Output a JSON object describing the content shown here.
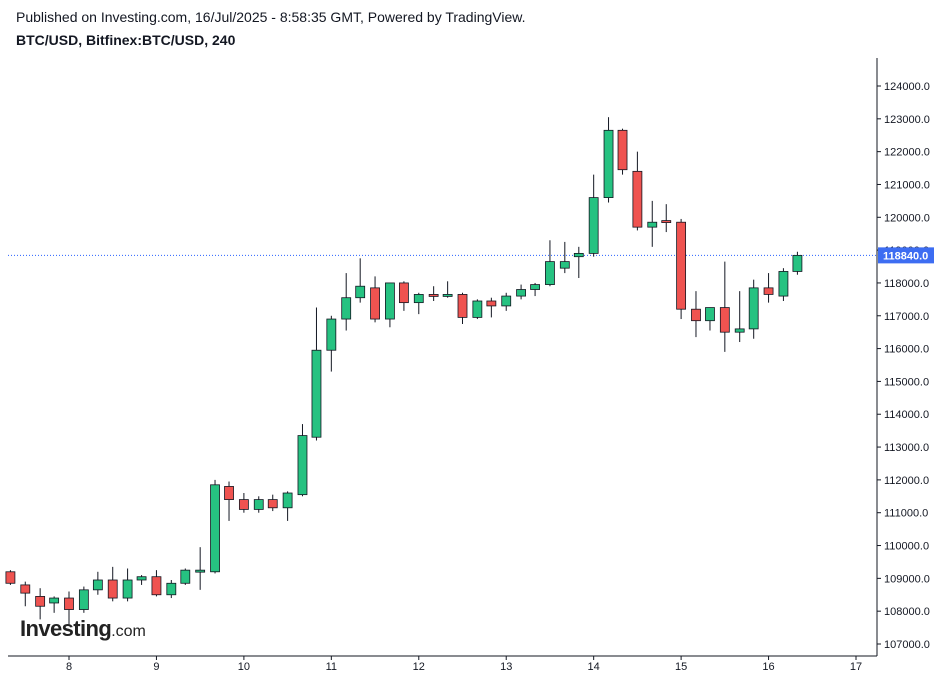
{
  "header": {
    "published_line": "Published on Investing.com, 16/Jul/2025 - 8:58:35 GMT, Powered by TradingView.",
    "symbol_line": "BTC/USD, Bitfinex:BTC/USD, 240"
  },
  "logo": {
    "brand": "Investing",
    "tld": ".com"
  },
  "colors": {
    "up": "#26c281",
    "down": "#ef5350",
    "wick": "#131722",
    "axis": "#131722",
    "price_line": "#2962ff",
    "price_label_bg": "#3d6df2"
  },
  "chart_data": {
    "type": "candlestick",
    "interval": "240",
    "x_ticks": [
      "8",
      "9",
      "10",
      "11",
      "12",
      "13",
      "14",
      "15",
      "16",
      "17"
    ],
    "y_ticks": [
      "107000.0",
      "108000.0",
      "109000.0",
      "110000.0",
      "111000.0",
      "112000.0",
      "113000.0",
      "114000.0",
      "115000.0",
      "116000.0",
      "117000.0",
      "118000.0",
      "119000.0",
      "120000.0",
      "121000.0",
      "122000.0",
      "123000.0",
      "124000.0"
    ],
    "ylim": [
      106600,
      125000
    ],
    "xlim": [
      7.3,
      17.2
    ],
    "current_price": 118840.0,
    "current_price_label": "118840.0",
    "candles": [
      {
        "t": 7.33,
        "o": 109200,
        "h": 109250,
        "l": 108800,
        "c": 108850
      },
      {
        "t": 7.5,
        "o": 108800,
        "h": 108900,
        "l": 108150,
        "c": 108550
      },
      {
        "t": 7.67,
        "o": 108450,
        "h": 108700,
        "l": 107750,
        "c": 108150
      },
      {
        "t": 7.83,
        "o": 108250,
        "h": 108450,
        "l": 107950,
        "c": 108400
      },
      {
        "t": 8.0,
        "o": 108400,
        "h": 108600,
        "l": 107600,
        "c": 108050
      },
      {
        "t": 8.17,
        "o": 108050,
        "h": 108750,
        "l": 107950,
        "c": 108650
      },
      {
        "t": 8.33,
        "o": 108650,
        "h": 109200,
        "l": 108500,
        "c": 108950
      },
      {
        "t": 8.5,
        "o": 108950,
        "h": 109350,
        "l": 108300,
        "c": 108400
      },
      {
        "t": 8.67,
        "o": 108400,
        "h": 109300,
        "l": 108300,
        "c": 108950
      },
      {
        "t": 8.83,
        "o": 108950,
        "h": 109100,
        "l": 108800,
        "c": 109050
      },
      {
        "t": 9.0,
        "o": 109050,
        "h": 109250,
        "l": 108450,
        "c": 108500
      },
      {
        "t": 9.17,
        "o": 108500,
        "h": 108950,
        "l": 108400,
        "c": 108850
      },
      {
        "t": 9.33,
        "o": 108850,
        "h": 109300,
        "l": 108800,
        "c": 109250
      },
      {
        "t": 9.5,
        "o": 109200,
        "h": 109950,
        "l": 108650,
        "c": 109250
      },
      {
        "t": 9.67,
        "o": 109200,
        "h": 112000,
        "l": 109150,
        "c": 111850
      },
      {
        "t": 9.83,
        "o": 111800,
        "h": 111950,
        "l": 110750,
        "c": 111400
      },
      {
        "t": 10.0,
        "o": 111400,
        "h": 111600,
        "l": 111000,
        "c": 111100
      },
      {
        "t": 10.17,
        "o": 111100,
        "h": 111500,
        "l": 111000,
        "c": 111400
      },
      {
        "t": 10.33,
        "o": 111400,
        "h": 111550,
        "l": 111050,
        "c": 111150
      },
      {
        "t": 10.5,
        "o": 111150,
        "h": 111650,
        "l": 110750,
        "c": 111600
      },
      {
        "t": 10.67,
        "o": 111550,
        "h": 113700,
        "l": 111500,
        "c": 113350
      },
      {
        "t": 10.83,
        "o": 113300,
        "h": 117250,
        "l": 113200,
        "c": 115950
      },
      {
        "t": 11.0,
        "o": 115950,
        "h": 117000,
        "l": 115300,
        "c": 116900
      },
      {
        "t": 11.17,
        "o": 116900,
        "h": 118300,
        "l": 116550,
        "c": 117550
      },
      {
        "t": 11.33,
        "o": 117550,
        "h": 118750,
        "l": 117400,
        "c": 117900
      },
      {
        "t": 11.5,
        "o": 117850,
        "h": 118200,
        "l": 116800,
        "c": 116900
      },
      {
        "t": 11.67,
        "o": 116900,
        "h": 118000,
        "l": 116650,
        "c": 118000
      },
      {
        "t": 11.83,
        "o": 118000,
        "h": 118050,
        "l": 117150,
        "c": 117400
      },
      {
        "t": 12.0,
        "o": 117400,
        "h": 117700,
        "l": 117050,
        "c": 117650
      },
      {
        "t": 12.17,
        "o": 117650,
        "h": 117900,
        "l": 117450,
        "c": 117600
      },
      {
        "t": 12.33,
        "o": 117600,
        "h": 118050,
        "l": 117550,
        "c": 117650
      },
      {
        "t": 12.5,
        "o": 117650,
        "h": 117700,
        "l": 116750,
        "c": 116950
      },
      {
        "t": 12.67,
        "o": 116950,
        "h": 117500,
        "l": 116900,
        "c": 117450
      },
      {
        "t": 12.83,
        "o": 117450,
        "h": 117550,
        "l": 116950,
        "c": 117300
      },
      {
        "t": 13.0,
        "o": 117300,
        "h": 117700,
        "l": 117150,
        "c": 117600
      },
      {
        "t": 13.17,
        "o": 117600,
        "h": 117950,
        "l": 117500,
        "c": 117800
      },
      {
        "t": 13.33,
        "o": 117800,
        "h": 118000,
        "l": 117600,
        "c": 117950
      },
      {
        "t": 13.5,
        "o": 117950,
        "h": 119300,
        "l": 117900,
        "c": 118650
      },
      {
        "t": 13.67,
        "o": 118450,
        "h": 119250,
        "l": 118300,
        "c": 118650
      },
      {
        "t": 13.83,
        "o": 118800,
        "h": 119100,
        "l": 118150,
        "c": 118900
      },
      {
        "t": 14.0,
        "o": 118900,
        "h": 121300,
        "l": 118800,
        "c": 120600
      },
      {
        "t": 14.17,
        "o": 120600,
        "h": 123050,
        "l": 120450,
        "c": 122650
      },
      {
        "t": 14.33,
        "o": 122650,
        "h": 122700,
        "l": 121300,
        "c": 121450
      },
      {
        "t": 14.5,
        "o": 121400,
        "h": 122000,
        "l": 119600,
        "c": 119700
      },
      {
        "t": 14.67,
        "o": 119700,
        "h": 120500,
        "l": 119100,
        "c": 119850
      },
      {
        "t": 14.83,
        "o": 119900,
        "h": 120400,
        "l": 119550,
        "c": 119850
      },
      {
        "t": 15.0,
        "o": 119850,
        "h": 119950,
        "l": 116900,
        "c": 117200
      },
      {
        "t": 15.17,
        "o": 117200,
        "h": 117750,
        "l": 116350,
        "c": 116850
      },
      {
        "t": 15.33,
        "o": 116850,
        "h": 117250,
        "l": 116550,
        "c": 117250
      },
      {
        "t": 15.5,
        "o": 117250,
        "h": 118650,
        "l": 115900,
        "c": 116500
      },
      {
        "t": 15.67,
        "o": 116500,
        "h": 117750,
        "l": 116200,
        "c": 116600
      },
      {
        "t": 15.83,
        "o": 116600,
        "h": 118100,
        "l": 116300,
        "c": 117850
      },
      {
        "t": 16.0,
        "o": 117850,
        "h": 118300,
        "l": 117400,
        "c": 117650
      },
      {
        "t": 16.17,
        "o": 117600,
        "h": 118450,
        "l": 117450,
        "c": 118350
      },
      {
        "t": 16.33,
        "o": 118350,
        "h": 118950,
        "l": 118250,
        "c": 118840
      }
    ]
  }
}
